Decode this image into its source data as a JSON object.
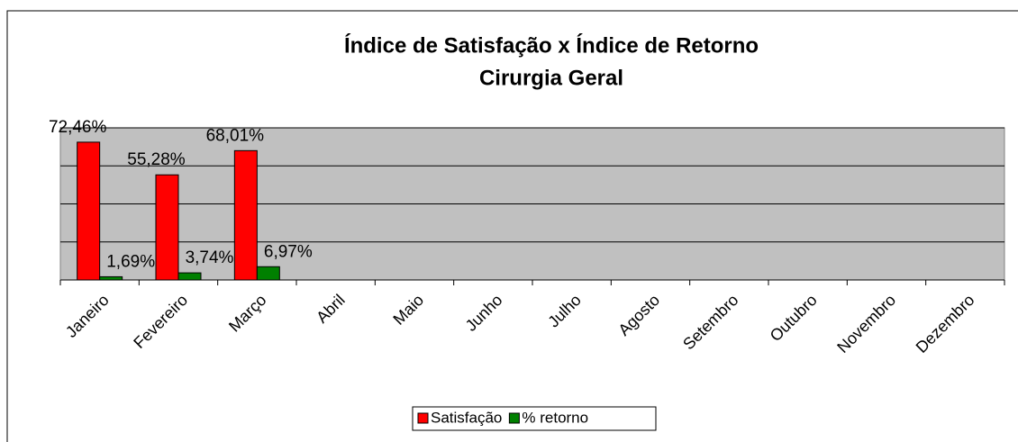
{
  "chart_data": {
    "type": "bar",
    "title": "Índice de Satisfação x Índice de Retorno",
    "subtitle": "Cirurgia Geral",
    "categories": [
      "Janeiro",
      "Fevereiro",
      "Março",
      "Abril",
      "Maio",
      "Junho",
      "Julho",
      "Agosto",
      "Setembro",
      "Outubro",
      "Novembro",
      "Dezembro"
    ],
    "series": [
      {
        "name": "Satisfação",
        "color": "#ff0000",
        "values": [
          72.46,
          55.28,
          68.01,
          null,
          null,
          null,
          null,
          null,
          null,
          null,
          null,
          null
        ],
        "value_labels": [
          "72,46%",
          "55,28%",
          "68,01%",
          null,
          null,
          null,
          null,
          null,
          null,
          null,
          null,
          null
        ]
      },
      {
        "name": "% retorno",
        "color": "#008000",
        "values": [
          1.69,
          3.74,
          6.97,
          null,
          null,
          null,
          null,
          null,
          null,
          null,
          null,
          null
        ],
        "value_labels": [
          "1,69%",
          "3,74%",
          "6,97%",
          null,
          null,
          null,
          null,
          null,
          null,
          null,
          null,
          null
        ]
      }
    ],
    "ylim": [
      0,
      80
    ],
    "yticks": [
      0,
      20,
      40,
      60,
      80
    ],
    "grid": true,
    "legend": "bottom"
  }
}
